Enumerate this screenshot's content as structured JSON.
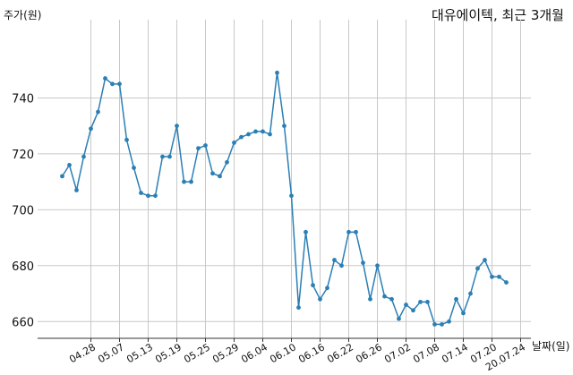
{
  "chart_data": {
    "type": "line",
    "title": "대유에이텍, 최근 3개월",
    "ylabel": "주가(원)",
    "xlabel": "날짜(일)",
    "ylim": [
      654,
      768
    ],
    "yticks": [
      660,
      680,
      700,
      720,
      740
    ],
    "x_tick_labels": [
      "04.28",
      "05.07",
      "05.13",
      "05.19",
      "05.25",
      "05.29",
      "06.04",
      "06.10",
      "06.16",
      "06.22",
      "06.26",
      "07.02",
      "07.08",
      "07.14",
      "07.20",
      "20.07.24"
    ],
    "x_tick_indices": [
      4,
      8,
      12,
      16,
      20,
      24,
      28,
      32,
      36,
      40,
      44,
      48,
      52,
      56,
      60,
      64
    ],
    "grid": true,
    "color": "#2a7fb5",
    "series": [
      {
        "values": [
          712,
          716,
          707,
          719,
          729,
          735,
          747,
          745,
          745,
          725,
          715,
          706,
          705,
          705,
          719,
          719,
          730,
          710,
          710,
          722,
          723,
          713,
          712,
          717,
          724,
          726,
          727,
          728,
          728,
          727,
          749,
          730,
          705,
          665,
          692,
          673,
          668,
          672,
          682,
          680,
          692,
          692,
          681,
          668,
          680,
          669,
          668,
          661,
          666,
          664,
          667,
          667,
          659,
          659,
          660,
          668,
          663,
          670,
          679,
          682,
          676,
          676,
          674
        ]
      }
    ]
  }
}
